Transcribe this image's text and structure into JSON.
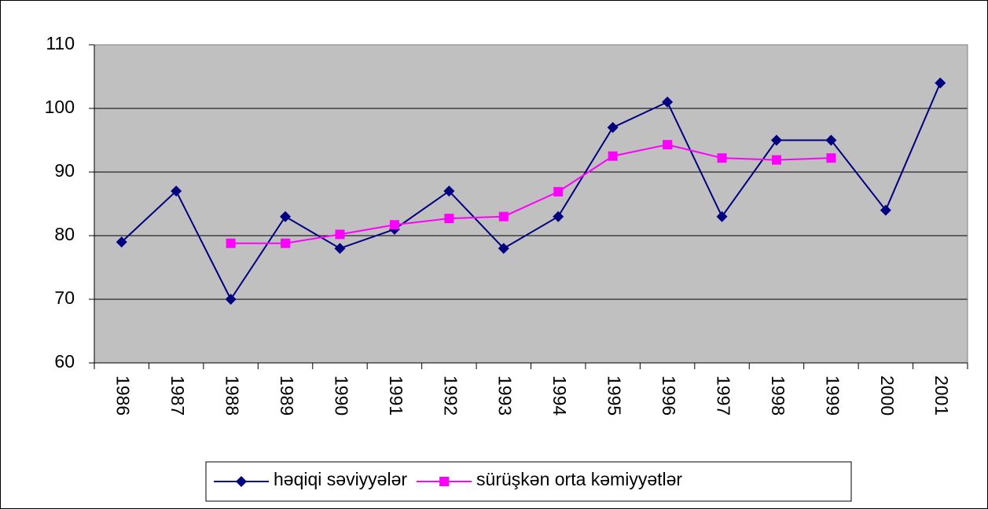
{
  "chart_data": {
    "type": "line",
    "categories": [
      "1986",
      "1987",
      "1988",
      "1989",
      "1990",
      "1991",
      "1992",
      "1993",
      "1994",
      "1995",
      "1996",
      "1997",
      "1998",
      "1999",
      "2000",
      "2001"
    ],
    "series": [
      {
        "name": "həqiqi səviyyələr",
        "color": "#000080",
        "marker": "diamond",
        "values": [
          79,
          87,
          70,
          83,
          78,
          81,
          87,
          78,
          83,
          97,
          101,
          83,
          95,
          95,
          84,
          104
        ]
      },
      {
        "name": "sürüşkən orta kəmiyyətlər",
        "color": "#ff00ff",
        "marker": "square",
        "values": [
          null,
          null,
          78.8,
          78.8,
          80.2,
          81.7,
          82.7,
          83.0,
          86.9,
          92.5,
          94.3,
          92.2,
          91.9,
          92.2,
          null,
          null
        ]
      }
    ],
    "ylim": [
      60,
      110
    ],
    "yticks": [
      60,
      70,
      80,
      90,
      100,
      110
    ],
    "grid": true,
    "legend": "bottom"
  }
}
